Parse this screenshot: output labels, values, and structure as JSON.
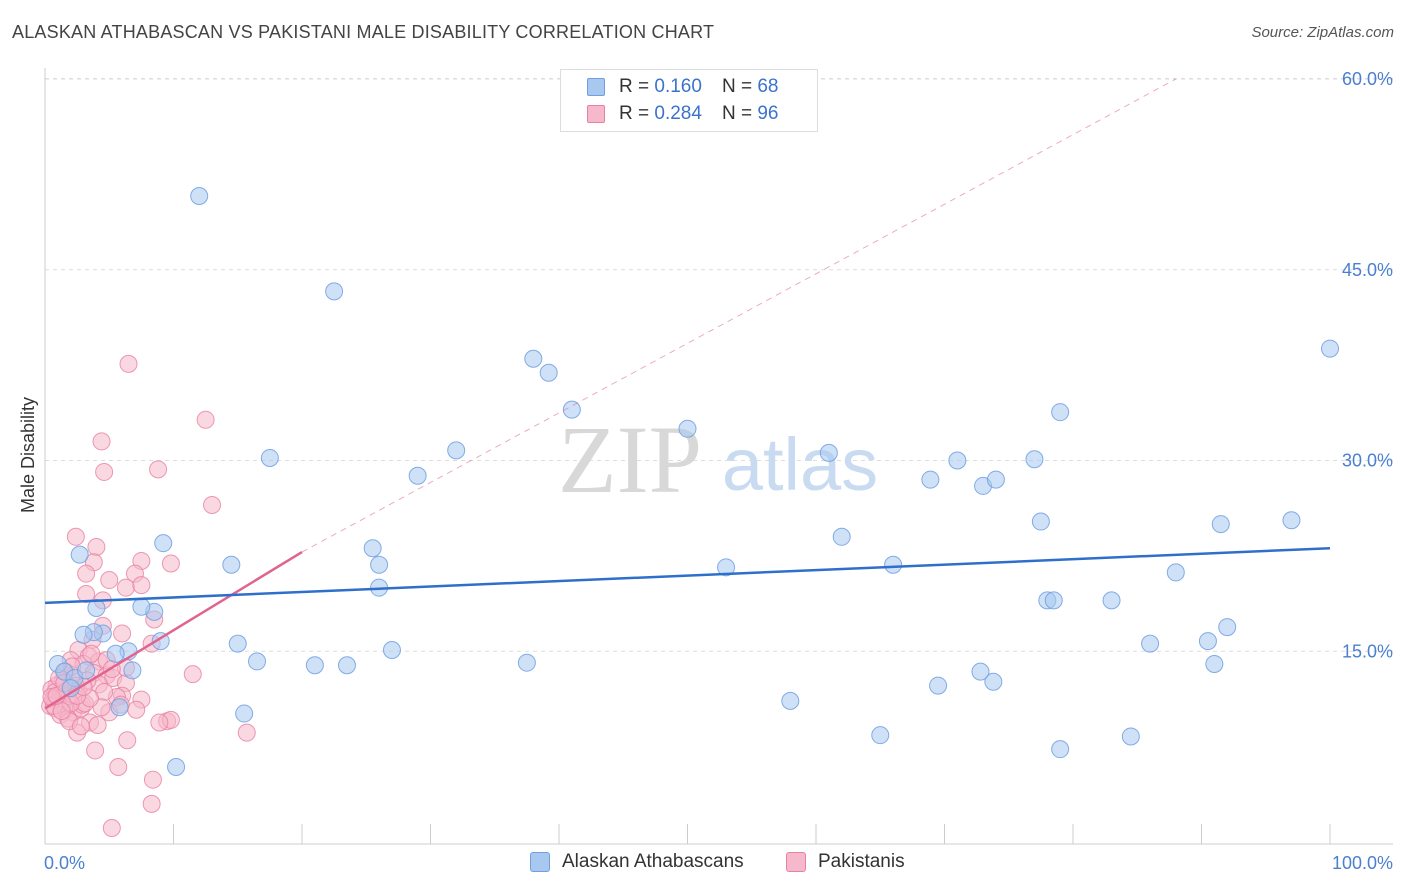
{
  "title": "ALASKAN ATHABASCAN VS PAKISTANI MALE DISABILITY CORRELATION CHART",
  "source": "Source: ZipAtlas.com",
  "watermark": {
    "zip": "ZIP",
    "atlas": "atlas"
  },
  "legend": {
    "rows": [
      {
        "r_label": "R =",
        "r_value": "0.160",
        "n_label": "N =",
        "n_value": "68"
      },
      {
        "r_label": "R =",
        "r_value": "0.284",
        "n_label": "N =",
        "n_value": "96"
      }
    ]
  },
  "colors": {
    "blue_fill": "#a8c8f0",
    "blue_stroke": "#6f9fe0",
    "blue_line": "#2f6fcc",
    "pink_fill": "#f6b8cb",
    "pink_stroke": "#e97fa3",
    "pink_line": "#e0648f",
    "grid": "#dddddd",
    "tick_text": "#4a7fd1"
  },
  "chart_data": {
    "type": "scatter",
    "title": "ALASKAN ATHABASCAN VS PAKISTANI MALE DISABILITY CORRELATION CHART",
    "xlabel": "",
    "ylabel": "Male Disability",
    "xlim": [
      0,
      100
    ],
    "ylim": [
      0,
      60
    ],
    "x_tick_labels": [
      "0.0%",
      "100.0%"
    ],
    "y_ticks": [
      15,
      30,
      45,
      60
    ],
    "y_tick_labels": [
      "15.0%",
      "30.0%",
      "45.0%",
      "60.0%"
    ],
    "grid": "horizontal dashed",
    "legend_position": "top-center",
    "series": [
      {
        "name": "Alaskan Athabascans",
        "r": 0.16,
        "n": 68,
        "trend": {
          "x": [
            0,
            100
          ],
          "y": [
            18.8,
            23.1
          ]
        },
        "points": [
          [
            12,
            50.8
          ],
          [
            22.5,
            43.3
          ],
          [
            38,
            38
          ],
          [
            39.2,
            36.9
          ],
          [
            41,
            34
          ],
          [
            32,
            30.8
          ],
          [
            29,
            28.8
          ],
          [
            17.5,
            30.2
          ],
          [
            50,
            32.5
          ],
          [
            61,
            30.6
          ],
          [
            62,
            24
          ],
          [
            66,
            21.8
          ],
          [
            53,
            21.6
          ],
          [
            68.9,
            28.5
          ],
          [
            71,
            30
          ],
          [
            73,
            28
          ],
          [
            74,
            28.5
          ],
          [
            77,
            30.1
          ],
          [
            79,
            33.8
          ],
          [
            77.5,
            25.2
          ],
          [
            78,
            19
          ],
          [
            78.5,
            19
          ],
          [
            83,
            19
          ],
          [
            86,
            15.6
          ],
          [
            88,
            21.2
          ],
          [
            91.5,
            25
          ],
          [
            97,
            25.3
          ],
          [
            100,
            38.8
          ],
          [
            90.5,
            15.8
          ],
          [
            92,
            16.9
          ],
          [
            91,
            14
          ],
          [
            73.8,
            12.6
          ],
          [
            72.8,
            13.4
          ],
          [
            69.5,
            12.3
          ],
          [
            84.5,
            8.3
          ],
          [
            79,
            7.3
          ],
          [
            65,
            8.4
          ],
          [
            58,
            11.1
          ],
          [
            37.5,
            14.1
          ],
          [
            26,
            21.8
          ],
          [
            25.5,
            23.1
          ],
          [
            26,
            20
          ],
          [
            27,
            15.1
          ],
          [
            23.5,
            13.9
          ],
          [
            21,
            13.9
          ],
          [
            16.5,
            14.2
          ],
          [
            15,
            15.6
          ],
          [
            15.5,
            10.1
          ],
          [
            14.5,
            21.8
          ],
          [
            9.2,
            23.5
          ],
          [
            8.5,
            18.1
          ],
          [
            7.5,
            18.5
          ],
          [
            9,
            15.8
          ],
          [
            6.5,
            15
          ],
          [
            6.8,
            13.5
          ],
          [
            5.5,
            14.8
          ],
          [
            4.5,
            16.4
          ],
          [
            3.8,
            16.5
          ],
          [
            3,
            16.3
          ],
          [
            4,
            18.4
          ],
          [
            2.7,
            22.6
          ],
          [
            1,
            14
          ],
          [
            1.5,
            13.4
          ],
          [
            2.3,
            12.9
          ],
          [
            5.8,
            10.6
          ],
          [
            10.2,
            5.9
          ],
          [
            2,
            12.1
          ],
          [
            3.2,
            13.5
          ]
        ]
      },
      {
        "name": "Pakistanis",
        "r": 0.284,
        "n": 96,
        "trend": {
          "x": [
            0,
            20
          ],
          "y": [
            10.5,
            22.8
          ]
        },
        "trend_extended": {
          "x": [
            20,
            88
          ],
          "y": [
            22.8,
            60
          ]
        },
        "points": [
          [
            6.5,
            37.6
          ],
          [
            12.5,
            33.2
          ],
          [
            4.4,
            31.5
          ],
          [
            8.8,
            29.3
          ],
          [
            4.6,
            29.1
          ],
          [
            13,
            26.5
          ],
          [
            2.4,
            24
          ],
          [
            4,
            23.2
          ],
          [
            7.5,
            22.1
          ],
          [
            3.8,
            22
          ],
          [
            9.8,
            21.9
          ],
          [
            7,
            21.1
          ],
          [
            3.2,
            21.1
          ],
          [
            5,
            20.6
          ],
          [
            6.3,
            20
          ],
          [
            7.5,
            20.2
          ],
          [
            8.5,
            17.5
          ],
          [
            3.2,
            19.5
          ],
          [
            4.5,
            19
          ],
          [
            4.5,
            17
          ],
          [
            3.7,
            15.9
          ],
          [
            6,
            16.4
          ],
          [
            8.3,
            15.6
          ],
          [
            2.6,
            15.1
          ],
          [
            3.4,
            14.6
          ],
          [
            4.2,
            14.2
          ],
          [
            2,
            14.3
          ],
          [
            3,
            14
          ],
          [
            1.6,
            13.4
          ],
          [
            2.2,
            13.1
          ],
          [
            3.8,
            13.3
          ],
          [
            4.8,
            13.1
          ],
          [
            5.3,
            12.9
          ],
          [
            6.3,
            12.5
          ],
          [
            1.4,
            12.7
          ],
          [
            0.9,
            12.3
          ],
          [
            0.5,
            12
          ],
          [
            0.8,
            11.8
          ],
          [
            1.2,
            11.6
          ],
          [
            1.8,
            11.5
          ],
          [
            2.6,
            11.9
          ],
          [
            0.6,
            11.2
          ],
          [
            1,
            11
          ],
          [
            1.4,
            10.8
          ],
          [
            0.4,
            10.7
          ],
          [
            0.8,
            10.5
          ],
          [
            1.6,
            10.4
          ],
          [
            2.2,
            10.2
          ],
          [
            2.8,
            10.5
          ],
          [
            1.2,
            10
          ],
          [
            0.7,
            10.7
          ],
          [
            1.8,
            9.7
          ],
          [
            3.5,
            9.4
          ],
          [
            5,
            10.2
          ],
          [
            6,
            11.5
          ],
          [
            7.5,
            11.2
          ],
          [
            5.6,
            11.4
          ],
          [
            4.2,
            12.4
          ],
          [
            6.3,
            13.7
          ],
          [
            9.5,
            9.5
          ],
          [
            9.8,
            9.6
          ],
          [
            11.5,
            13.2
          ],
          [
            15.7,
            8.6
          ],
          [
            2.5,
            8.6
          ],
          [
            3.9,
            7.2
          ],
          [
            5.7,
            5.9
          ],
          [
            6.4,
            8
          ],
          [
            8.4,
            4.9
          ],
          [
            8.3,
            3
          ],
          [
            5.2,
            1.1
          ],
          [
            1.9,
            9.5
          ],
          [
            2.9,
            10.8
          ],
          [
            4.6,
            11.8
          ],
          [
            3.3,
            12.7
          ],
          [
            2.1,
            13.8
          ],
          [
            3.6,
            14.8
          ],
          [
            4.8,
            14.3
          ],
          [
            5.2,
            13.6
          ],
          [
            1.1,
            12.9
          ],
          [
            1.7,
            11.9
          ],
          [
            0.5,
            11.4
          ],
          [
            2.4,
            12.3
          ],
          [
            3.1,
            10.9
          ],
          [
            4.4,
            10.6
          ],
          [
            5.9,
            10.8
          ],
          [
            7.1,
            10.4
          ],
          [
            8.9,
            9.4
          ],
          [
            2.8,
            9.1
          ],
          [
            4.1,
            9.2
          ],
          [
            3.5,
            11.3
          ],
          [
            2,
            10.9
          ],
          [
            1.3,
            10.3
          ],
          [
            0.9,
            11.5
          ],
          [
            2.5,
            11.5
          ],
          [
            3,
            12.2
          ],
          [
            1.5,
            12.5
          ]
        ]
      }
    ]
  },
  "bottom_legend": [
    "Alaskan Athabascans",
    "Pakistanis"
  ]
}
